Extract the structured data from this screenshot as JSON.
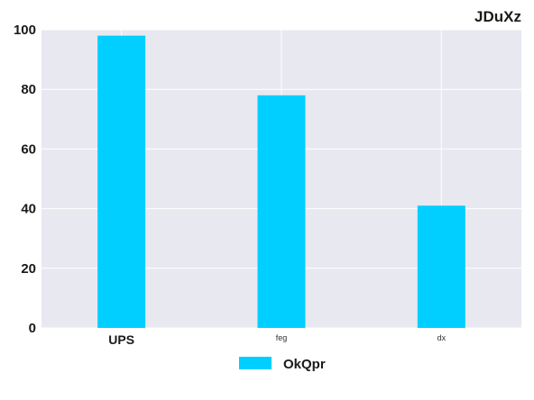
{
  "chart_data": {
    "type": "bar",
    "title": "JDuXz",
    "categories": [
      "UPS",
      "feg",
      "dx"
    ],
    "series": [
      {
        "name": "OkQpr",
        "values": [
          98,
          78,
          41
        ],
        "color": "#00cfff"
      }
    ],
    "ylim": [
      0,
      100
    ],
    "yticks": [
      0,
      20,
      40,
      60,
      80,
      100
    ],
    "grid": true,
    "background": "#e8e8f0",
    "legend": "bottom-center"
  }
}
